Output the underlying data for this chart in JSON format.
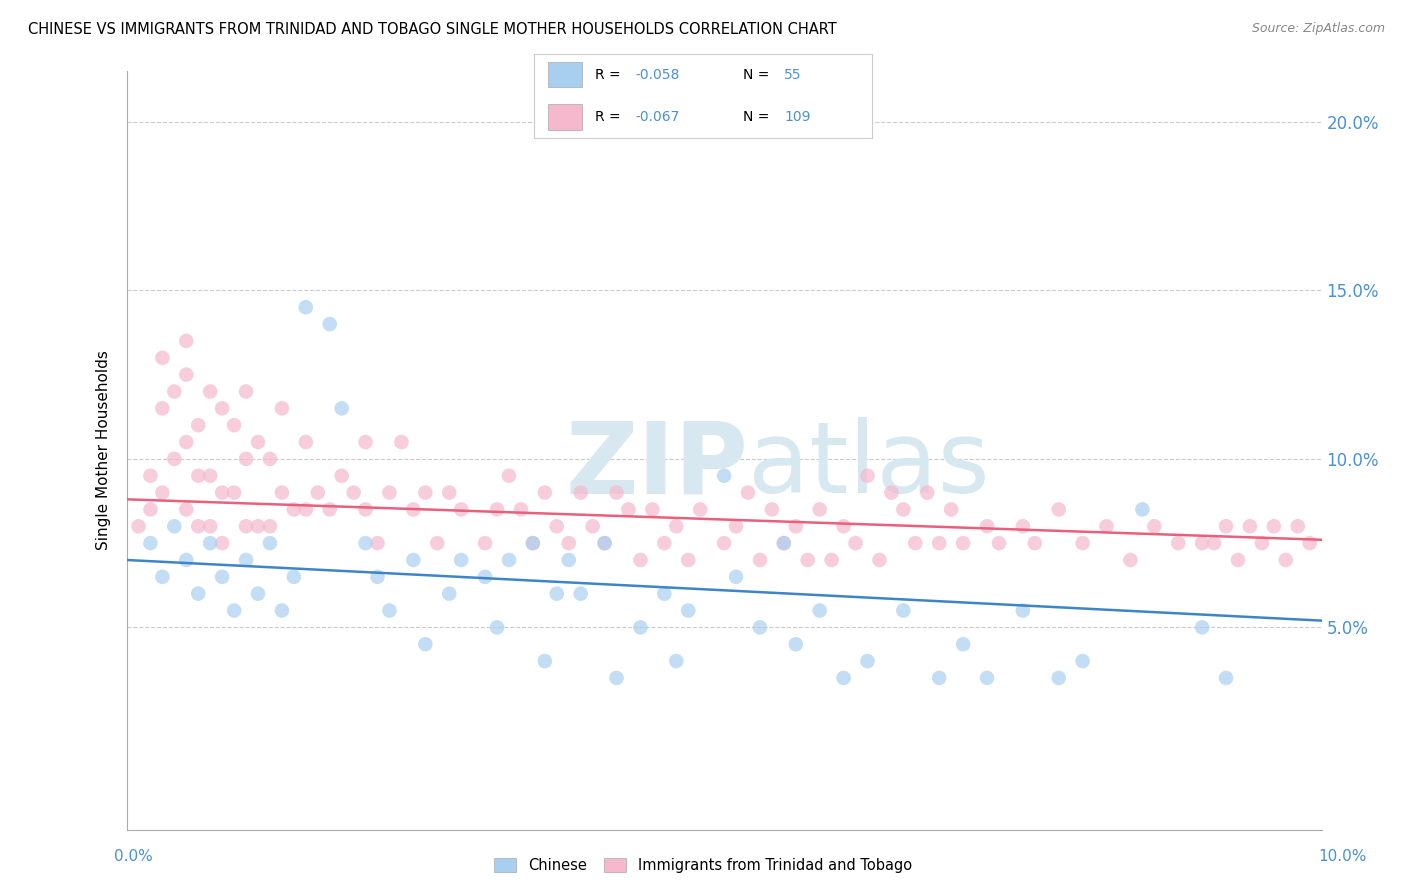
{
  "title": "CHINESE VS IMMIGRANTS FROM TRINIDAD AND TOBAGO SINGLE MOTHER HOUSEHOLDS CORRELATION CHART",
  "source": "Source: ZipAtlas.com",
  "ylabel": "Single Mother Households",
  "y_ticks": [
    0.05,
    0.1,
    0.15,
    0.2
  ],
  "y_tick_labels": [
    "5.0%",
    "10.0%",
    "15.0%",
    "20.0%"
  ],
  "xlim": [
    0.0,
    0.1
  ],
  "ylim": [
    -0.01,
    0.215
  ],
  "chinese_color": "#a8cff0",
  "trinidadian_color": "#f5b8cc",
  "chinese_line_color": "#3d85c8",
  "trinidadian_line_color": "#e8607a",
  "background_color": "#ffffff",
  "watermark_color": "#d8e8f0",
  "chinese_R": -0.058,
  "chinese_N": 55,
  "trinidadian_R": -0.067,
  "trinidadian_N": 109
}
